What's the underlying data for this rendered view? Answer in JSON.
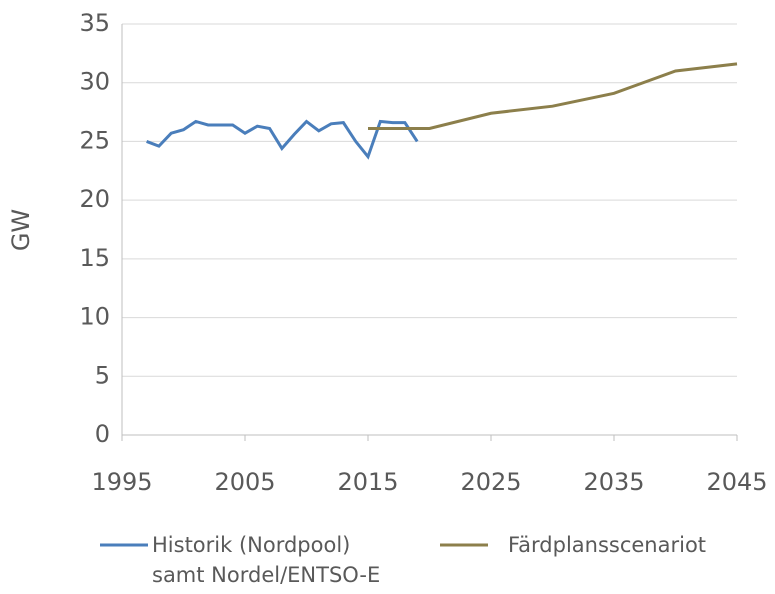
{
  "chart_data": {
    "type": "line",
    "y_label": "GW",
    "xlim": [
      1995,
      2045
    ],
    "xticks": [
      1995,
      2005,
      2015,
      2025,
      2035,
      2045
    ],
    "ylim": [
      0,
      35
    ],
    "yticks": [
      0,
      5,
      10,
      15,
      20,
      25,
      30,
      35
    ],
    "grid": true,
    "legend": "bottom",
    "series": [
      {
        "name": "Historik (Nordpool) samt Nordel/ENTSO-E",
        "color": "#4a7ebb",
        "x": [
          1997,
          1998,
          1999,
          2000,
          2001,
          2002,
          2003,
          2004,
          2005,
          2006,
          2007,
          2008,
          2009,
          2010,
          2011,
          2012,
          2013,
          2014,
          2015,
          2016,
          2017,
          2018,
          2019
        ],
        "values": [
          25.0,
          24.6,
          25.7,
          26.0,
          26.7,
          26.4,
          26.4,
          26.4,
          25.7,
          26.3,
          26.1,
          24.4,
          25.6,
          26.7,
          25.9,
          26.5,
          26.6,
          25.0,
          23.7,
          26.7,
          26.6,
          26.6,
          25.0
        ]
      },
      {
        "name": "Färdplansscenariot",
        "color": "#8c7f4b",
        "x": [
          2015,
          2020,
          2025,
          2030,
          2035,
          2040,
          2045
        ],
        "values": [
          26.1,
          26.1,
          27.4,
          28.0,
          29.1,
          31.0,
          31.6
        ]
      }
    ]
  }
}
